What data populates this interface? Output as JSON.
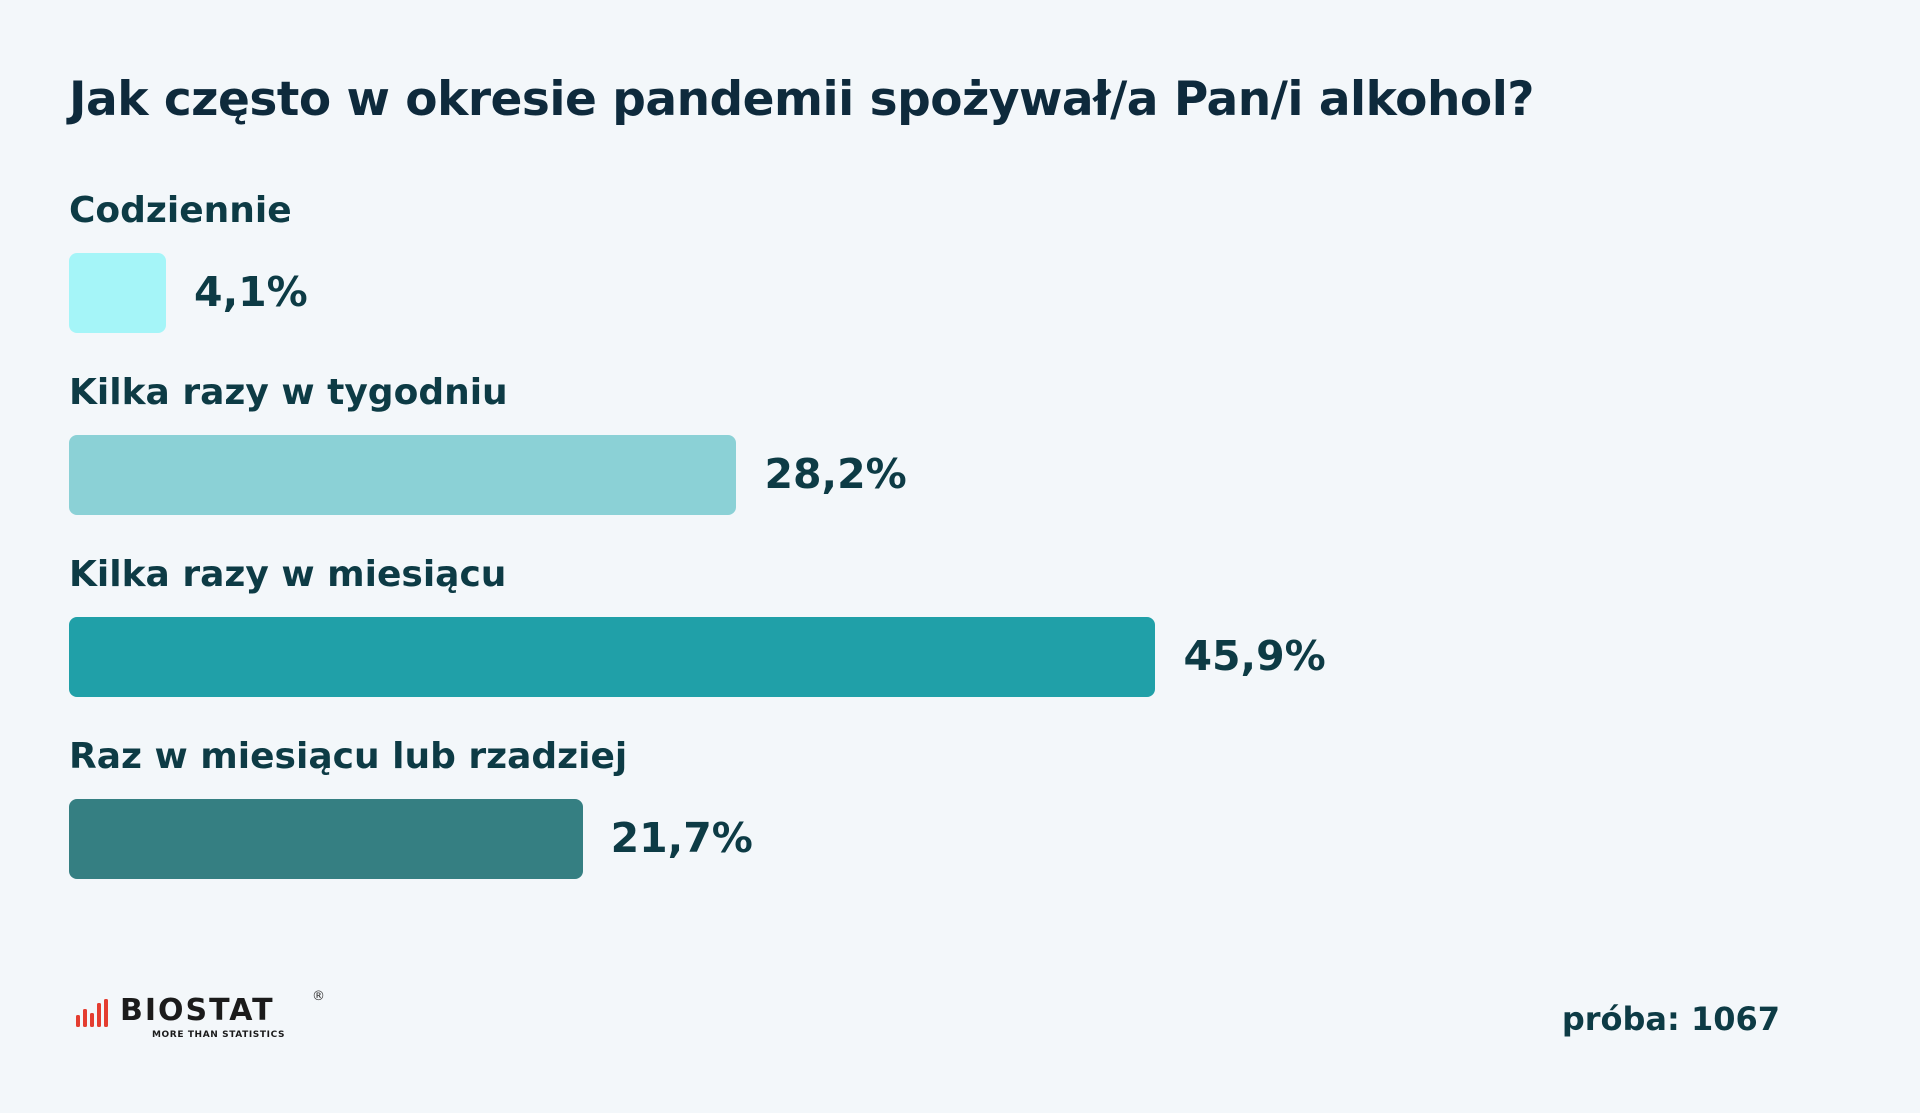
{
  "title": "Jak często w okresie pandemii spożywał/a Pan/i alkohol?",
  "chart_data": {
    "type": "bar",
    "orientation": "horizontal",
    "title": "Jak często w okresie pandemii spożywał/a Pan/i alkohol?",
    "unit": "%",
    "xlim": [
      0,
      100
    ],
    "grid": false,
    "legend": "none",
    "categories": [
      "Codziennie",
      "Kilka razy w tygodniu",
      "Kilka razy w miesiącu",
      "Raz w miesiącu lub rzadziej"
    ],
    "values": [
      4.1,
      28.2,
      45.9,
      21.7
    ],
    "value_labels": [
      "4,1%",
      "28,2%",
      "45,9%",
      "21,7%"
    ],
    "colors": [
      "#a5f5f8",
      "#8bd1d6",
      "#20a0a8",
      "#357f82"
    ]
  },
  "footer": {
    "logo_text": "BIOSTAT",
    "logo_tagline": "MORE THAN STATISTICS",
    "logo_registered": "®",
    "sample_label": "próba: 1067"
  },
  "colors": {
    "background": "#f3f7fa",
    "title": "#0e2a3c",
    "text": "#0d3b45",
    "logo_accent": "#e43d30"
  }
}
